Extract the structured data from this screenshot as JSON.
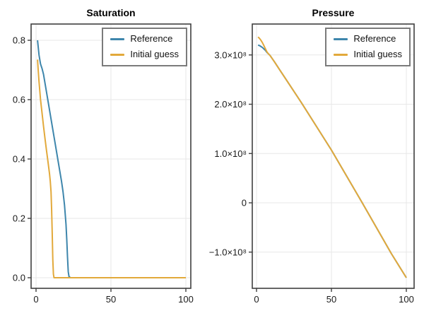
{
  "colors": {
    "reference": "#3e86ac",
    "initial_guess": "#e2a93b",
    "frame": "#3f3f3f",
    "grid": "#e7e7e7",
    "tick_text": "#1a1a1a"
  },
  "legend": {
    "items": [
      {
        "label": "Reference",
        "color_key": "reference"
      },
      {
        "label": "Initial guess",
        "color_key": "initial_guess"
      }
    ],
    "position": "top-right-inside"
  },
  "chart_data": [
    {
      "type": "line",
      "title": "Saturation",
      "xlabel": "",
      "ylabel": "",
      "xlim": [
        -3.3,
        103.3
      ],
      "ylim": [
        -0.036,
        0.855
      ],
      "grid": true,
      "xticks": [
        0,
        50,
        100
      ],
      "xtick_labels": [
        "0",
        "50",
        "100"
      ],
      "yticks": [
        0.0,
        0.2,
        0.4,
        0.6,
        0.8
      ],
      "ytick_labels": [
        "0.0",
        "0.2",
        "0.4",
        "0.6",
        "0.8"
      ],
      "series": [
        {
          "name": "Reference",
          "color_key": "reference",
          "x": [
            1,
            2,
            3,
            4,
            5,
            6,
            7,
            8,
            9,
            10,
            11,
            12,
            13,
            14,
            15,
            16,
            17,
            18,
            19,
            20,
            20.5,
            21,
            21.5,
            22,
            23,
            30,
            40,
            50,
            60,
            70,
            80,
            90,
            100
          ],
          "y": [
            0.8,
            0.75,
            0.72,
            0.705,
            0.685,
            0.655,
            0.625,
            0.595,
            0.565,
            0.535,
            0.505,
            0.475,
            0.445,
            0.415,
            0.385,
            0.355,
            0.325,
            0.29,
            0.245,
            0.18,
            0.13,
            0.07,
            0.02,
            0.004,
            0.0,
            0.0,
            0.0,
            0.0,
            0.0,
            0.0,
            0.0,
            0.0,
            0.0
          ]
        },
        {
          "name": "Initial guess",
          "color_key": "initial_guess",
          "x": [
            1,
            1.5,
            2,
            2.5,
            3,
            4,
            5,
            6,
            7,
            8,
            9,
            9.5,
            10,
            10.4,
            10.8,
            11.2,
            11.6,
            12,
            13,
            20,
            30,
            50,
            75,
            100
          ],
          "y": [
            0.735,
            0.695,
            0.66,
            0.63,
            0.6,
            0.555,
            0.51,
            0.468,
            0.428,
            0.39,
            0.35,
            0.325,
            0.29,
            0.23,
            0.15,
            0.06,
            0.012,
            0.0,
            0.0,
            0.0,
            0.0,
            0.0,
            0.0,
            0.0
          ]
        }
      ]
    },
    {
      "type": "line",
      "title": "Pressure",
      "xlabel": "",
      "ylabel": "",
      "xlim": [
        -2.8,
        105.2
      ],
      "ylim": [
        -174000000.0,
        363000000.0
      ],
      "grid": true,
      "xticks": [
        0,
        50,
        100
      ],
      "xtick_labels": [
        "0",
        "50",
        "100"
      ],
      "yticks": [
        -100000000.0,
        0,
        100000000.0,
        200000000.0,
        300000000.0
      ],
      "ytick_labels": [
        "−1.0×10⁸",
        "0",
        "1.0×10⁸",
        "2.0×10⁸",
        "3.0×10⁸"
      ],
      "series": [
        {
          "name": "Reference",
          "color_key": "reference",
          "x": [
            1,
            2,
            3,
            4,
            5,
            6,
            7,
            8,
            9,
            12,
            15,
            20,
            25,
            30,
            40,
            50,
            60,
            70,
            80,
            90,
            100
          ],
          "y": [
            320000000.0,
            319000000.0,
            317000000.0,
            315000000.0,
            312000000.0,
            309000000.0,
            305000000.0,
            302000000.0,
            299000000.0,
            286000000.0,
            272000000.0,
            249000000.0,
            226000000.0,
            203000000.0,
            155000000.0,
            107000000.0,
            55000000.0,
            3000000.0,
            -50000000.0,
            -103000000.0,
            -152000000.0
          ]
        },
        {
          "name": "Initial guess",
          "color_key": "initial_guess",
          "x": [
            1,
            2,
            3,
            4,
            5,
            6,
            7,
            8,
            9,
            12,
            15,
            20,
            25,
            30,
            40,
            50,
            60,
            70,
            80,
            90,
            100
          ],
          "y": [
            336500000.0,
            333500000.0,
            329500000.0,
            324500000.0,
            318500000.0,
            312000000.0,
            306000000.0,
            302000000.0,
            299000000.0,
            286000000.0,
            272000000.0,
            249000000.0,
            226000000.0,
            203000000.0,
            155000000.0,
            107000000.0,
            55000000.0,
            3000000.0,
            -50000000.0,
            -103000000.0,
            -152000000.0
          ]
        }
      ]
    }
  ]
}
